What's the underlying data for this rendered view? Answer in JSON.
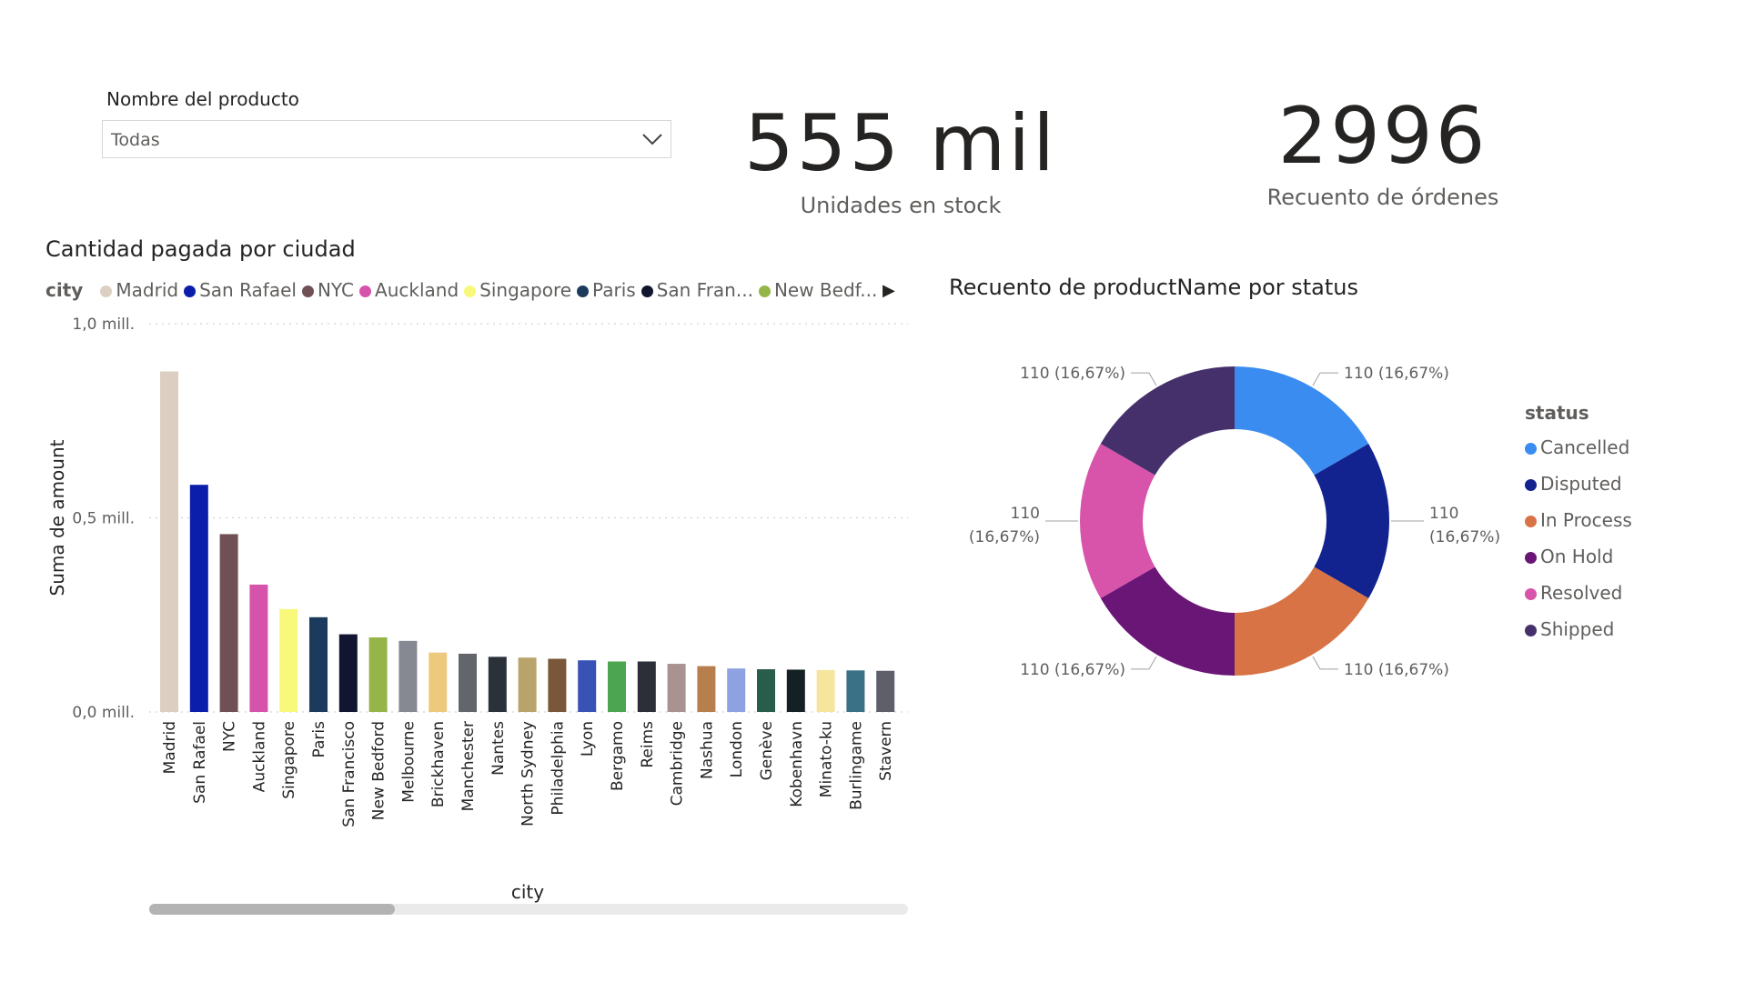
{
  "slicer": {
    "title": "Nombre del producto",
    "value": "Todas"
  },
  "kpis": [
    {
      "value": "555 mil",
      "label": "Unidades en stock"
    },
    {
      "value": "2996",
      "label": "Recuento de órdenes"
    }
  ],
  "bar_chart": {
    "title": "Cantidad pagada por ciudad",
    "legend_title": "city",
    "legend": [
      {
        "label": "Madrid",
        "color": "#dccfc1"
      },
      {
        "label": "San Rafael",
        "color": "#0a1dab"
      },
      {
        "label": "NYC",
        "color": "#705055"
      },
      {
        "label": "Auckland",
        "color": "#d553ab"
      },
      {
        "label": "Singapore",
        "color": "#f8f87a"
      },
      {
        "label": "Paris",
        "color": "#1c3b5c"
      },
      {
        "label": "San Fran...",
        "color": "#121530"
      },
      {
        "label": "New Bedf...",
        "color": "#95b548"
      }
    ]
  },
  "donut_chart": {
    "title": "Recuento de productName por status",
    "legend_title": "status"
  },
  "chart_data": [
    {
      "type": "bar",
      "title": "Cantidad pagada por ciudad",
      "xlabel": "city",
      "ylabel": "Suma de amount",
      "ylim": [
        0,
        1.0
      ],
      "yticks": [
        "0,0 mill.",
        "0,5 mill.",
        "1,0 mill."
      ],
      "grid": true,
      "legend_placement": "top",
      "categories": [
        "Madrid",
        "San Rafael",
        "NYC",
        "Auckland",
        "Singapore",
        "Paris",
        "San Francisco",
        "New Bedford",
        "Melbourne",
        "Brickhaven",
        "Manchester",
        "Nantes",
        "North Sydney",
        "Philadelphia",
        "Lyon",
        "Bergamo",
        "Reims",
        "Cambridge",
        "Nashua",
        "London",
        "Genève",
        "Kobenhavn",
        "Minato-ku",
        "Burlingame",
        "Stavern"
      ],
      "values": [
        0.877,
        0.585,
        0.458,
        0.328,
        0.265,
        0.244,
        0.2,
        0.192,
        0.183,
        0.153,
        0.15,
        0.142,
        0.14,
        0.137,
        0.133,
        0.13,
        0.13,
        0.124,
        0.118,
        0.112,
        0.11,
        0.109,
        0.108,
        0.107,
        0.106
      ],
      "colors": [
        "#dccfc1",
        "#0a1dab",
        "#705055",
        "#d553ab",
        "#f8f87a",
        "#1c3b5c",
        "#121530",
        "#95b548",
        "#868892",
        "#edc97d",
        "#62656a",
        "#2b3139",
        "#b8a46a",
        "#7a573a",
        "#3852b5",
        "#4ca651",
        "#2c2f37",
        "#a89292",
        "#b67f4d",
        "#8ea2e2",
        "#285d4c",
        "#152024",
        "#f6e59c",
        "#3a7186",
        "#5f5f6a"
      ]
    },
    {
      "type": "pie",
      "title": "Recuento de productName por status",
      "legend_title": "status",
      "legend_placement": "right",
      "categories": [
        "Cancelled",
        "Disputed",
        "In Process",
        "On Hold",
        "Resolved",
        "Shipped"
      ],
      "values": [
        110,
        110,
        110,
        110,
        110,
        110
      ],
      "labels": [
        "110 (16,67%)",
        "110 (16,67%)",
        "110 (16,67%)",
        "110 (16,67%)",
        "110 (16,67%)",
        "110 (16,67%)"
      ],
      "colors": [
        "#3a8cf0",
        "#12238f",
        "#d77345",
        "#6a1676",
        "#d853aa",
        "#45306c"
      ]
    }
  ]
}
